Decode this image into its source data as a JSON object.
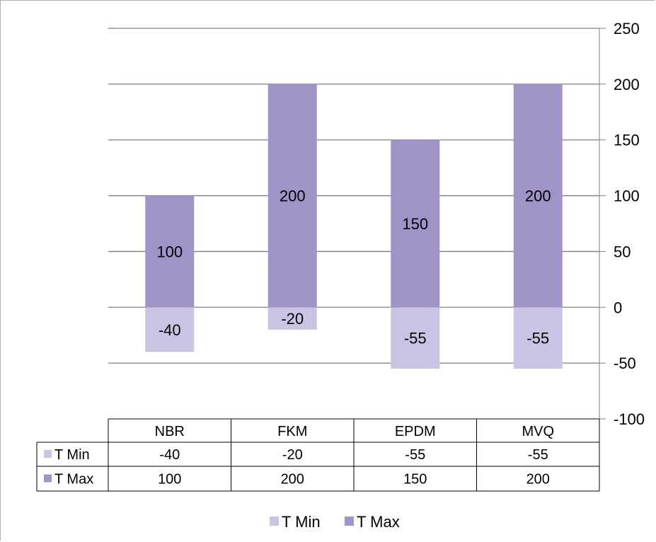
{
  "chart_data": {
    "type": "bar",
    "stacked": true,
    "categories": [
      "NBR",
      "FKM",
      "EPDM",
      "MVQ"
    ],
    "series": [
      {
        "name": "T Min",
        "values": [
          -40,
          -20,
          -55,
          -55
        ],
        "color": "#cbc3e3"
      },
      {
        "name": "T Max",
        "values": [
          100,
          200,
          150,
          200
        ],
        "color": "#9f93c7"
      }
    ],
    "ylim": [
      -100,
      250
    ],
    "yticks": [
      -100,
      -50,
      0,
      50,
      100,
      150,
      200,
      250
    ],
    "y_axis_position": "right",
    "grid": true,
    "data_labels": true,
    "data_table": true,
    "legend": "bottom"
  }
}
